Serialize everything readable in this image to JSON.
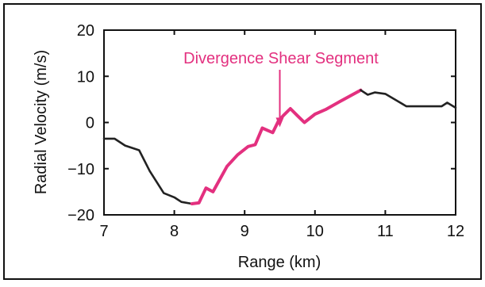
{
  "chart_data": {
    "type": "line",
    "xlabel": "Range (km)",
    "ylabel": "Radial Velocity (m/s)",
    "xlim": [
      7,
      12
    ],
    "ylim": [
      -20,
      20
    ],
    "x_ticks": [
      "7",
      "8",
      "9",
      "10",
      "11",
      "12"
    ],
    "y_ticks": [
      "20",
      "10",
      "0",
      "−10",
      "−20"
    ],
    "x_tick_values": [
      7,
      8,
      9,
      10,
      11,
      12
    ],
    "y_tick_values": [
      20,
      10,
      0,
      -10,
      -20
    ],
    "grid": false,
    "annotation": {
      "text": "Divergence Shear Segment",
      "x": 9.5,
      "y": -1,
      "color": "#e3307f"
    },
    "series": [
      {
        "color": "#222222",
        "x": [
          7.0,
          7.15,
          7.3,
          7.5,
          7.65,
          7.85,
          8.0,
          8.1,
          8.25
        ],
        "y": [
          -3.5,
          -3.5,
          -5.0,
          -6.0,
          -10.5,
          -15.3,
          -16.2,
          -17.2,
          -17.6
        ]
      },
      {
        "color": "#e3307f",
        "x": [
          8.25,
          8.35,
          8.45,
          8.55,
          8.75,
          8.9,
          9.05,
          9.15,
          9.25,
          9.4,
          9.48,
          9.55,
          9.65,
          9.75,
          9.85,
          10.0,
          10.15,
          10.35,
          10.65
        ],
        "y": [
          -17.6,
          -17.4,
          -14.2,
          -15.0,
          -9.5,
          -7.0,
          -5.2,
          -4.8,
          -1.2,
          -2.2,
          0.3,
          1.5,
          3.0,
          1.5,
          0.0,
          1.8,
          2.8,
          4.5,
          7.0
        ],
        "segment": "Divergence Shear Segment"
      },
      {
        "color": "#222222",
        "x": [
          10.65,
          10.75,
          10.85,
          11.0,
          11.1,
          11.3,
          11.55,
          11.8,
          11.88,
          12.0
        ],
        "y": [
          7.0,
          6.0,
          6.5,
          6.2,
          5.3,
          3.5,
          3.5,
          3.5,
          4.3,
          3.2
        ]
      }
    ]
  }
}
